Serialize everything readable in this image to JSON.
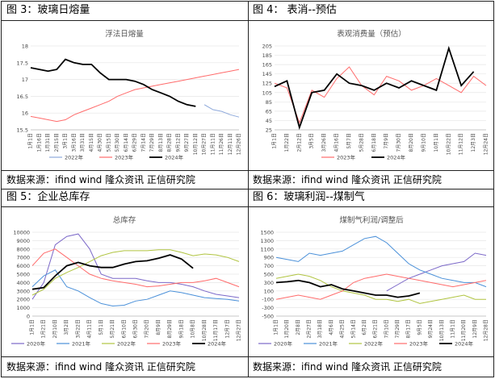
{
  "panels": [
    {
      "title": "图 3：玻璃日熔量",
      "source": "数据来源：ifind wind  隆众资讯  正信研究院"
    },
    {
      "title": "图 4：  表消--预估",
      "source": "数据来源：ifind wind  隆众资讯  正信研究院"
    },
    {
      "title": "图 5：企业总库存",
      "source": "数据来源：ifind wind  隆众资讯  正信研究院"
    },
    {
      "title": "图 6：玻璃利润--煤制气",
      "source": "数据来源：ifind wind  隆众资讯  正信研究院"
    }
  ],
  "chart_data": [
    {
      "type": "line",
      "title": "浮法日熔量",
      "ylim": [
        15.5,
        18
      ],
      "yticks": [
        15.5,
        16,
        16.5,
        17,
        17.5,
        18
      ],
      "x": [
        "1月1日",
        "1月16日",
        "1月31日",
        "2月15日",
        "3月1日",
        "3月16日",
        "3月31日",
        "4月15日",
        "4月30日",
        "5月15日",
        "5月30日",
        "6月14日",
        "6月29日",
        "7月14日",
        "7月29日",
        "8月13日",
        "8月28日",
        "9月12日",
        "9月27日",
        "10月12日",
        "10月27日",
        "11月11日",
        "11月26日",
        "12月11日",
        "12月26日"
      ],
      "series": [
        {
          "name": "2022年",
          "color": "#8ea9db",
          "values": [
            null,
            null,
            null,
            null,
            null,
            null,
            null,
            null,
            null,
            null,
            null,
            null,
            null,
            null,
            null,
            null,
            null,
            null,
            null,
            null,
            16.25,
            16.1,
            16.05,
            15.95,
            15.88
          ]
        },
        {
          "name": "2023年",
          "color": "#ff6b6b",
          "values": [
            15.9,
            15.85,
            15.8,
            15.75,
            15.8,
            15.95,
            16.05,
            16.15,
            16.25,
            16.35,
            16.5,
            16.6,
            16.7,
            16.75,
            16.8,
            16.85,
            16.9,
            16.95,
            17.0,
            17.05,
            17.1,
            17.15,
            17.2,
            17.25,
            17.3
          ]
        },
        {
          "name": "2024年",
          "color": "#000000",
          "values": [
            17.35,
            17.3,
            17.25,
            17.3,
            17.6,
            17.5,
            17.45,
            17.45,
            17.2,
            17.0,
            17.0,
            17.0,
            16.95,
            16.85,
            16.7,
            16.6,
            16.5,
            16.35,
            16.25,
            16.2,
            null,
            null,
            null,
            null,
            null
          ]
        }
      ]
    },
    {
      "type": "line",
      "title": "表观消费量（预估）",
      "ylim": [
        25,
        205
      ],
      "yticks": [
        25,
        45,
        65,
        85,
        105,
        125,
        145,
        165,
        185,
        205
      ],
      "x": [
        "1月1日",
        "1月22日",
        "2月12日",
        "3月5日",
        "3月26日",
        "4月16日",
        "5月7日",
        "5月28日",
        "6月18日",
        "7月9日",
        "7月30日",
        "8月20日",
        "9月10日",
        "10月1日",
        "10月22日",
        "11月12日",
        "12月3日",
        "12月24日"
      ],
      "series": [
        {
          "name": "2023年",
          "color": "#ff6b6b",
          "values": [
            125,
            115,
            40,
            110,
            95,
            135,
            160,
            120,
            100,
            140,
            130,
            110,
            120,
            135,
            120,
            105,
            140,
            120
          ]
        },
        {
          "name": "2024年",
          "color": "#000000",
          "values": [
            118,
            130,
            30,
            105,
            110,
            145,
            125,
            120,
            110,
            125,
            115,
            130,
            120,
            110,
            200,
            120,
            150,
            null
          ]
        }
      ]
    },
    {
      "type": "line",
      "title": "总库存",
      "ylim": [
        0,
        10000
      ],
      "yticks": [
        0,
        1000,
        2000,
        3000,
        4000,
        5000,
        6000,
        7000,
        8000,
        9000,
        10000
      ],
      "x": [
        "1月1日",
        "1月21日",
        "2月10日",
        "3月2日",
        "3月22日",
        "4月11日",
        "5月1日",
        "5月21日",
        "6月10日",
        "6月30日",
        "7月20日",
        "8月9日",
        "8月29日",
        "9月18日",
        "10月8日",
        "10月28日",
        "11月17日",
        "12月7日",
        "12月27日"
      ],
      "series": [
        {
          "name": "2020年",
          "color": "#7b68c8",
          "values": [
            2000,
            4000,
            8500,
            9500,
            9800,
            8000,
            5000,
            4500,
            4500,
            4500,
            4200,
            4000,
            4000,
            3800,
            3500,
            3000,
            2600,
            2400,
            2200
          ]
        },
        {
          "name": "2021年",
          "color": "#4a90d9",
          "values": [
            3500,
            4800,
            5500,
            3500,
            3000,
            2200,
            1500,
            1200,
            1300,
            1800,
            2000,
            2500,
            3000,
            2800,
            2500,
            2200,
            2100,
            2000,
            1800
          ]
        },
        {
          "name": "2022年",
          "color": "#b0c440",
          "values": [
            2500,
            3200,
            4500,
            5200,
            5800,
            6500,
            7200,
            7600,
            7800,
            7800,
            7800,
            7900,
            7900,
            7600,
            7200,
            7400,
            7300,
            7000,
            6500
          ]
        },
        {
          "name": "2023年",
          "color": "#ff6b6b",
          "values": [
            6000,
            7500,
            8000,
            7000,
            6000,
            5000,
            4500,
            4200,
            4000,
            3800,
            3500,
            3600,
            3800,
            4000,
            4000,
            4200,
            4500,
            4000,
            3500
          ]
        },
        {
          "name": "2024年",
          "color": "#000000",
          "values": [
            3200,
            3400,
            4800,
            6000,
            6400,
            6000,
            5800,
            5800,
            6200,
            6500,
            6600,
            6900,
            7300,
            6800,
            5700,
            null,
            null,
            null,
            null
          ]
        }
      ]
    },
    {
      "type": "line",
      "title": "煤制气利润/调整后",
      "ylim": [
        -500,
        1500
      ],
      "yticks": [
        -500,
        -300,
        -100,
        100,
        300,
        500,
        700,
        900,
        1100,
        1300,
        1500
      ],
      "x": [
        "1月1日",
        "1月20日",
        "2月8日",
        "2月27日",
        "3月18日",
        "4月6日",
        "4月25日",
        "5月14日",
        "6月2日",
        "6月21日",
        "7月10日",
        "7月29日",
        "8月17日",
        "9月5日",
        "9月24日",
        "10月13日",
        "11月1日",
        "11月20日",
        "12月9日",
        "12月28日"
      ],
      "series": [
        {
          "name": "2020年",
          "color": "#7b68c8",
          "values": [
            null,
            null,
            null,
            null,
            null,
            null,
            null,
            null,
            null,
            null,
            100,
            250,
            400,
            500,
            600,
            700,
            750,
            800,
            1000,
            950
          ]
        },
        {
          "name": "2021年",
          "color": "#4a90d9",
          "values": [
            900,
            850,
            800,
            1000,
            950,
            1000,
            1050,
            1200,
            1350,
            1400,
            1250,
            1000,
            750,
            600,
            500,
            400,
            350,
            300,
            300,
            200
          ]
        },
        {
          "name": "2022年",
          "color": "#b0c440",
          "values": [
            400,
            450,
            500,
            450,
            350,
            200,
            100,
            50,
            0,
            -100,
            -100,
            -150,
            -100,
            -200,
            -150,
            -100,
            -50,
            0,
            -100,
            -100
          ]
        },
        {
          "name": "2023年",
          "color": "#ff6b6b",
          "values": [
            -100,
            -50,
            0,
            -50,
            -100,
            0,
            100,
            300,
            400,
            450,
            500,
            450,
            400,
            350,
            300,
            250,
            200,
            250,
            300,
            350
          ]
        },
        {
          "name": "2024年",
          "color": "#000000",
          "values": [
            300,
            320,
            350,
            300,
            200,
            250,
            150,
            100,
            50,
            0,
            0,
            -50,
            -20,
            50,
            null,
            null,
            null,
            null,
            null,
            null
          ]
        }
      ]
    }
  ]
}
